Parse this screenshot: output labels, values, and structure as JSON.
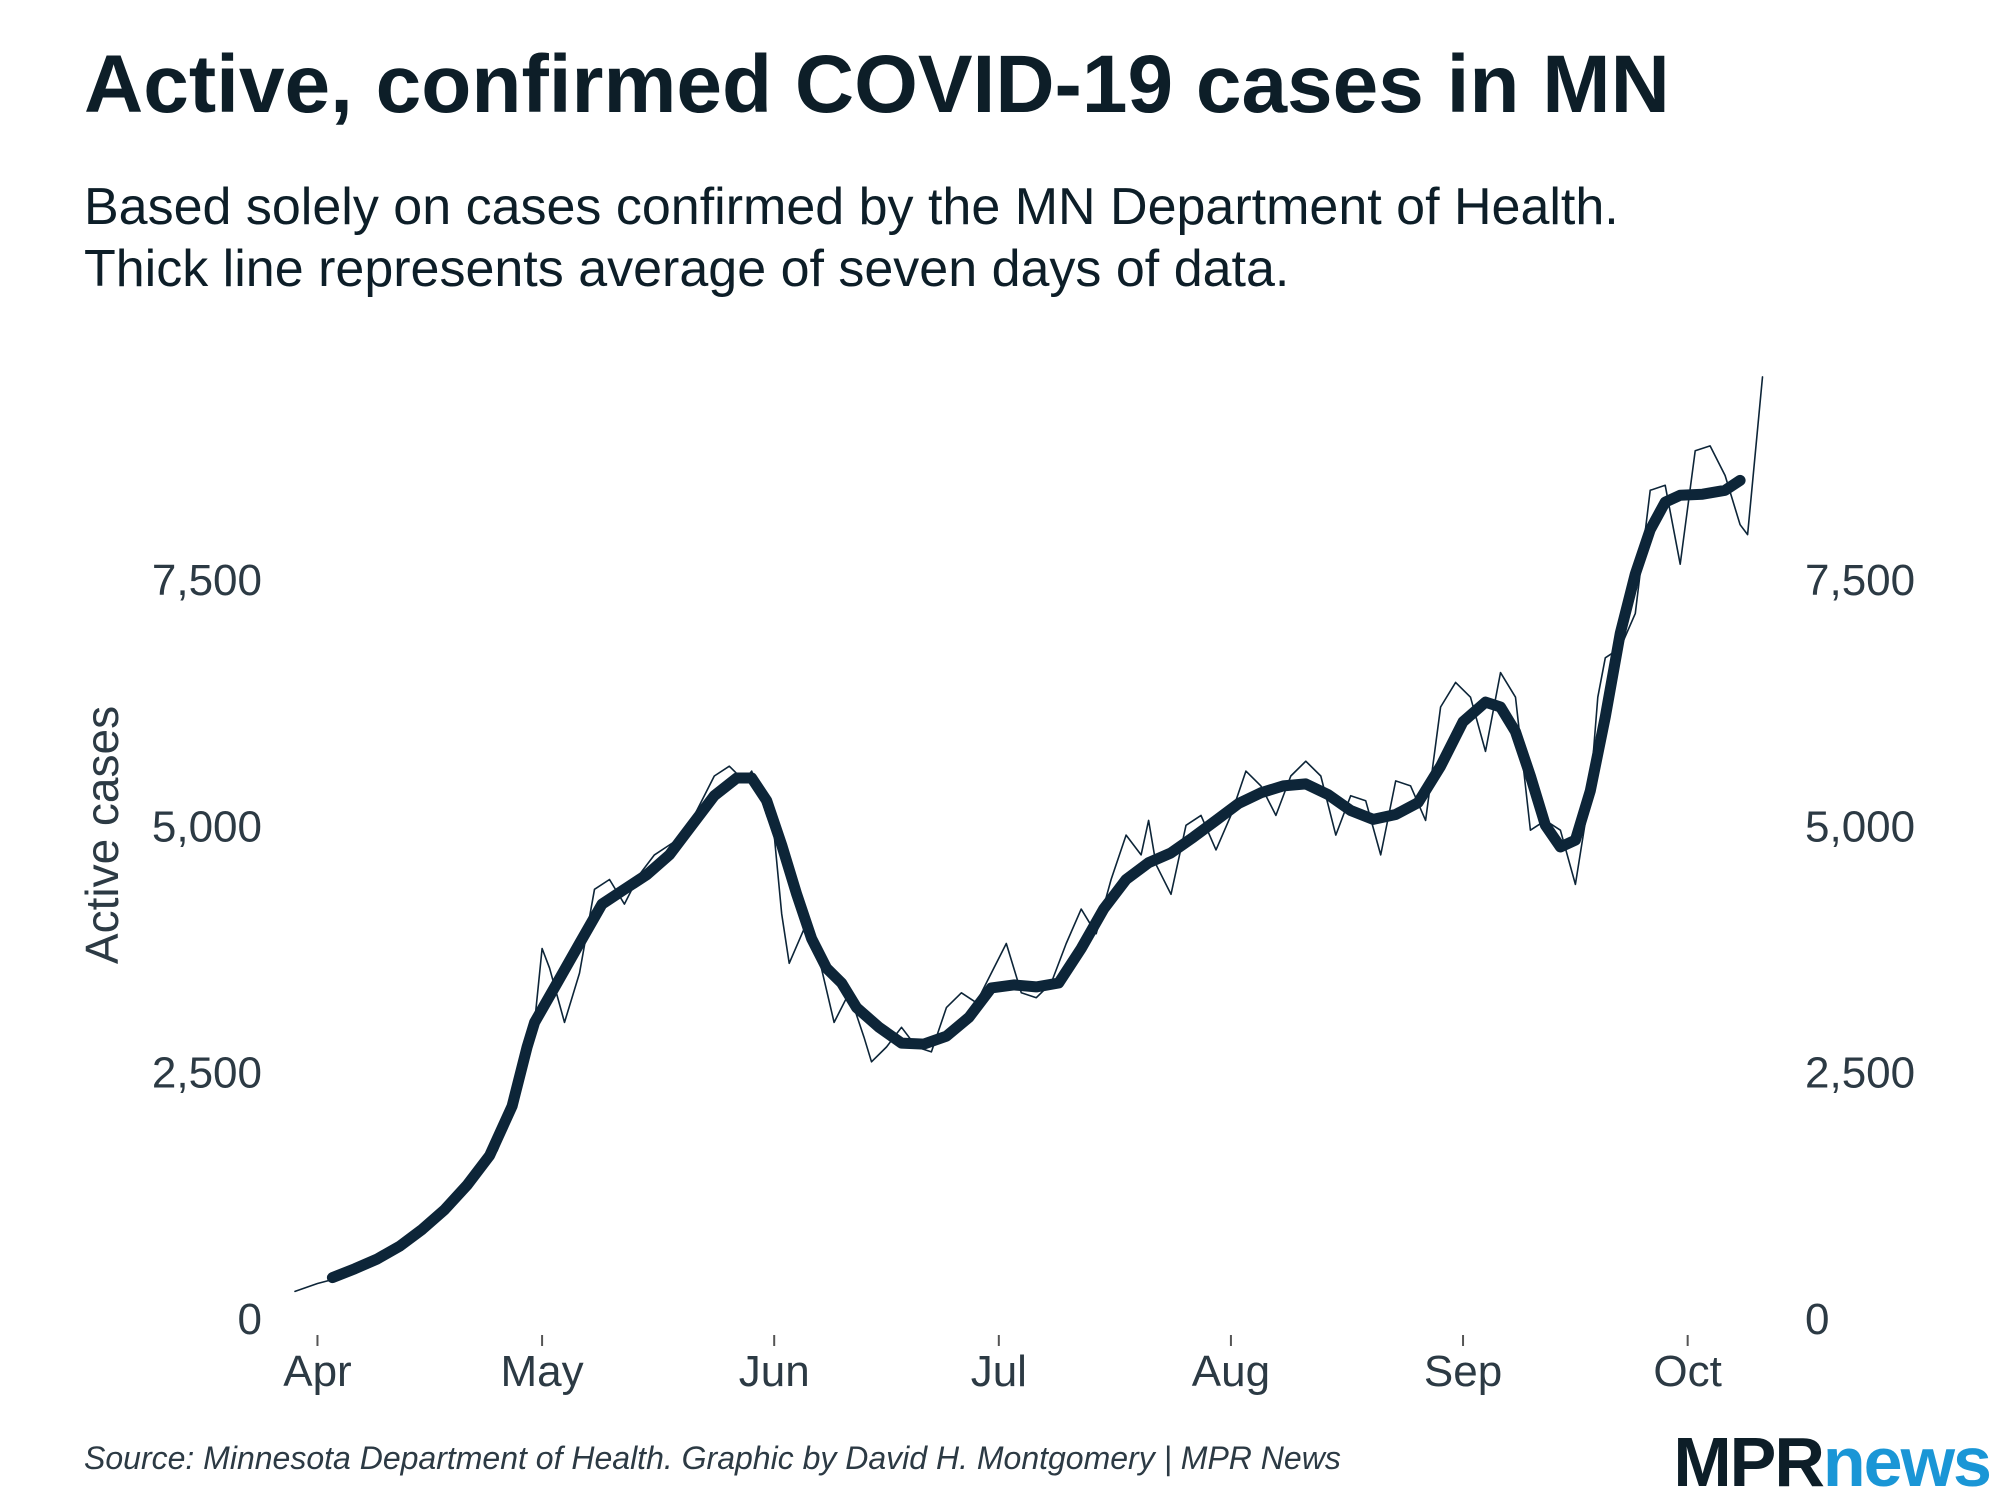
{
  "header": {
    "title": "Active, confirmed COVID-19 cases in MN",
    "subtitle_line1": "Based solely on cases confirmed by the MN Department of Health.",
    "subtitle_line2": "Thick line represents average of seven days of data."
  },
  "footer": {
    "source": "Source: Minnesota Department of Health. Graphic by David H. Montgomery | MPR News",
    "logo_mpr": "MPR",
    "logo_news": "news"
  },
  "colors": {
    "line": "#0d2538",
    "text": "#2c3a44",
    "brand_dark": "#0d1e28",
    "brand_blue": "#1a96d6"
  },
  "chart_data": {
    "type": "line",
    "title": "Active, confirmed COVID-19 cases in MN",
    "ylabel": "Active cases",
    "xlabel": "",
    "ylim": [
      0,
      9600
    ],
    "xlim": [
      -3,
      196
    ],
    "grid": false,
    "y_ticks": [
      {
        "value": 0,
        "label": "0"
      },
      {
        "value": 2500,
        "label": "2,500"
      },
      {
        "value": 5000,
        "label": "5,000"
      },
      {
        "value": 7500,
        "label": "7,500"
      }
    ],
    "x_ticks": [
      {
        "day": 0,
        "label": "Apr"
      },
      {
        "day": 30,
        "label": "May"
      },
      {
        "day": 61,
        "label": "Jun"
      },
      {
        "day": 91,
        "label": "Jul"
      },
      {
        "day": 122,
        "label": "Aug"
      },
      {
        "day": 153,
        "label": "Sep"
      },
      {
        "day": 183,
        "label": "Oct"
      }
    ],
    "series": [
      {
        "name": "Daily active cases",
        "style": "thin",
        "points": [
          [
            -3,
            270
          ],
          [
            0,
            350
          ],
          [
            4,
            430
          ],
          [
            8,
            560
          ],
          [
            12,
            780
          ],
          [
            16,
            990
          ],
          [
            20,
            1300
          ],
          [
            24,
            1700
          ],
          [
            27,
            2300
          ],
          [
            29,
            3000
          ],
          [
            30,
            3750
          ],
          [
            31,
            3550
          ],
          [
            33,
            3000
          ],
          [
            35,
            3500
          ],
          [
            37,
            4350
          ],
          [
            39,
            4450
          ],
          [
            41,
            4200
          ],
          [
            43,
            4500
          ],
          [
            45,
            4700
          ],
          [
            47,
            4800
          ],
          [
            49,
            4900
          ],
          [
            51,
            5200
          ],
          [
            53,
            5500
          ],
          [
            55,
            5600
          ],
          [
            57,
            5450
          ],
          [
            58,
            5550
          ],
          [
            60,
            5100
          ],
          [
            61,
            4900
          ],
          [
            62,
            4100
          ],
          [
            63,
            3600
          ],
          [
            65,
            3950
          ],
          [
            67,
            3650
          ],
          [
            69,
            3000
          ],
          [
            71,
            3300
          ],
          [
            73,
            2850
          ],
          [
            74,
            2600
          ],
          [
            76,
            2750
          ],
          [
            78,
            2950
          ],
          [
            80,
            2750
          ],
          [
            82,
            2700
          ],
          [
            84,
            3150
          ],
          [
            86,
            3300
          ],
          [
            88,
            3200
          ],
          [
            90,
            3500
          ],
          [
            92,
            3800
          ],
          [
            94,
            3300
          ],
          [
            96,
            3250
          ],
          [
            98,
            3400
          ],
          [
            100,
            3800
          ],
          [
            102,
            4150
          ],
          [
            104,
            3900
          ],
          [
            106,
            4450
          ],
          [
            108,
            4900
          ],
          [
            110,
            4700
          ],
          [
            111,
            5050
          ],
          [
            112,
            4600
          ],
          [
            114,
            4300
          ],
          [
            116,
            5000
          ],
          [
            118,
            5100
          ],
          [
            120,
            4750
          ],
          [
            122,
            5100
          ],
          [
            124,
            5550
          ],
          [
            126,
            5400
          ],
          [
            128,
            5100
          ],
          [
            130,
            5500
          ],
          [
            132,
            5650
          ],
          [
            134,
            5500
          ],
          [
            136,
            4900
          ],
          [
            138,
            5300
          ],
          [
            140,
            5250
          ],
          [
            142,
            4700
          ],
          [
            144,
            5450
          ],
          [
            146,
            5400
          ],
          [
            148,
            5050
          ],
          [
            150,
            6200
          ],
          [
            152,
            6450
          ],
          [
            154,
            6300
          ],
          [
            156,
            5750
          ],
          [
            158,
            6550
          ],
          [
            160,
            6300
          ],
          [
            162,
            4950
          ],
          [
            164,
            5050
          ],
          [
            166,
            4950
          ],
          [
            168,
            4400
          ],
          [
            170,
            5350
          ],
          [
            171,
            6300
          ],
          [
            172,
            6700
          ],
          [
            174,
            6800
          ],
          [
            176,
            7150
          ],
          [
            178,
            8400
          ],
          [
            180,
            8450
          ],
          [
            182,
            7650
          ],
          [
            184,
            8800
          ],
          [
            186,
            8850
          ],
          [
            188,
            8550
          ],
          [
            190,
            8050
          ],
          [
            191,
            7950
          ],
          [
            193,
            9550
          ]
        ]
      },
      {
        "name": "7-day average",
        "style": "thick",
        "points": [
          [
            2,
            410
          ],
          [
            5,
            500
          ],
          [
            8,
            600
          ],
          [
            11,
            730
          ],
          [
            14,
            900
          ],
          [
            17,
            1100
          ],
          [
            20,
            1350
          ],
          [
            23,
            1650
          ],
          [
            26,
            2150
          ],
          [
            28,
            2750
          ],
          [
            29,
            3000
          ],
          [
            32,
            3400
          ],
          [
            35,
            3800
          ],
          [
            38,
            4200
          ],
          [
            41,
            4350
          ],
          [
            44,
            4500
          ],
          [
            47,
            4700
          ],
          [
            50,
            5000
          ],
          [
            53,
            5300
          ],
          [
            56,
            5480
          ],
          [
            58,
            5480
          ],
          [
            60,
            5250
          ],
          [
            62,
            4800
          ],
          [
            64,
            4300
          ],
          [
            66,
            3850
          ],
          [
            68,
            3550
          ],
          [
            70,
            3400
          ],
          [
            72,
            3150
          ],
          [
            75,
            2950
          ],
          [
            78,
            2790
          ],
          [
            81,
            2780
          ],
          [
            84,
            2860
          ],
          [
            87,
            3050
          ],
          [
            90,
            3350
          ],
          [
            93,
            3380
          ],
          [
            96,
            3360
          ],
          [
            99,
            3400
          ],
          [
            102,
            3750
          ],
          [
            105,
            4150
          ],
          [
            108,
            4450
          ],
          [
            111,
            4620
          ],
          [
            114,
            4720
          ],
          [
            117,
            4880
          ],
          [
            120,
            5050
          ],
          [
            123,
            5220
          ],
          [
            126,
            5330
          ],
          [
            129,
            5400
          ],
          [
            132,
            5420
          ],
          [
            135,
            5310
          ],
          [
            138,
            5150
          ],
          [
            141,
            5060
          ],
          [
            144,
            5110
          ],
          [
            147,
            5230
          ],
          [
            150,
            5600
          ],
          [
            153,
            6050
          ],
          [
            156,
            6250
          ],
          [
            158,
            6200
          ],
          [
            160,
            5950
          ],
          [
            162,
            5500
          ],
          [
            164,
            5000
          ],
          [
            166,
            4780
          ],
          [
            168,
            4850
          ],
          [
            170,
            5350
          ],
          [
            172,
            6100
          ],
          [
            174,
            6950
          ],
          [
            176,
            7550
          ],
          [
            178,
            8000
          ],
          [
            180,
            8280
          ],
          [
            182,
            8350
          ],
          [
            185,
            8360
          ],
          [
            188,
            8400
          ],
          [
            190,
            8500
          ]
        ]
      }
    ]
  }
}
